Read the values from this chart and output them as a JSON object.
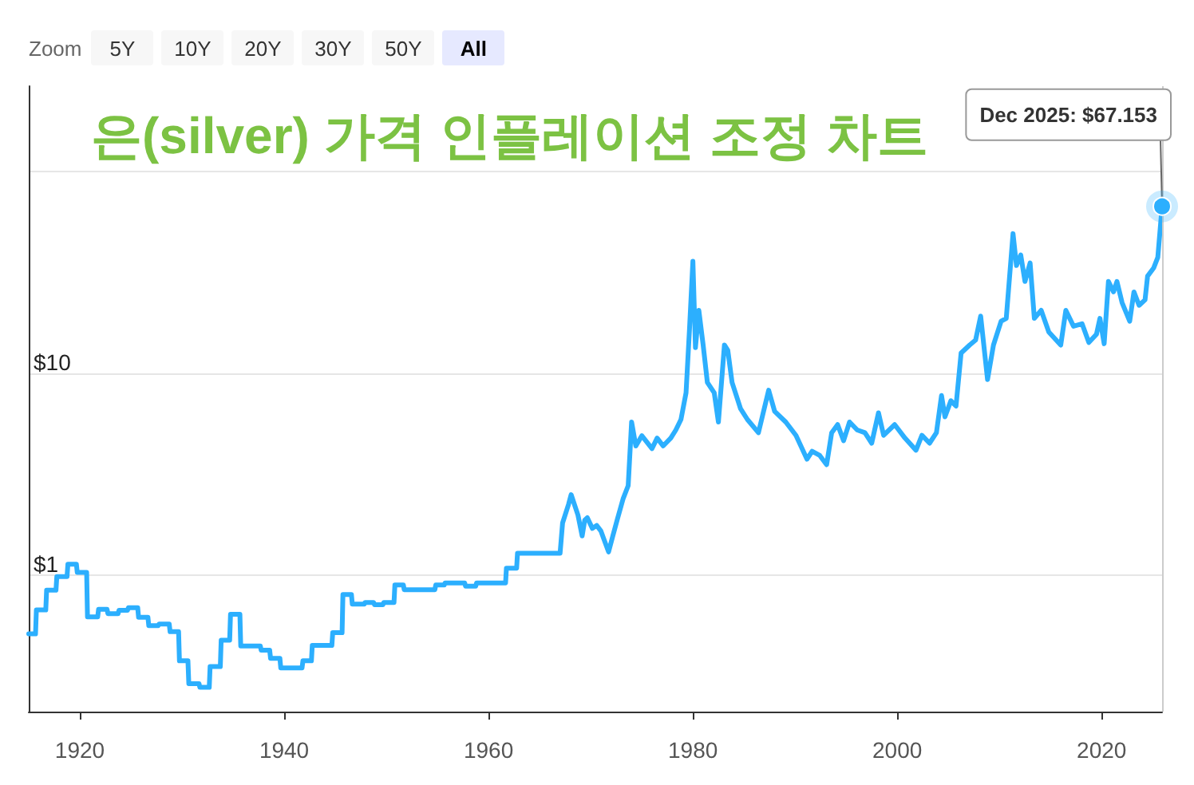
{
  "chart_data": {
    "type": "line",
    "title": "은(silver) 가격 인플레이션 조정 차트",
    "annotations": [
      "Zoom",
      "5Y",
      "10Y",
      "20Y",
      "30Y",
      "50Y",
      "All",
      {
        "text": "Dec 2025: $67.153",
        "x": "2025-12",
        "y": 67.153
      }
    ],
    "x": [
      "1915-01",
      "1915-09",
      "1915-10",
      "1916-09",
      "1916-10",
      "1917-09",
      "1917-10",
      "1918-10",
      "1918-11",
      "1919-09",
      "1919-10",
      "1920-09",
      "1920-10",
      "1921-10",
      "1921-11",
      "1922-09",
      "1922-10",
      "1923-10",
      "1923-11",
      "1924-09",
      "1924-10",
      "1925-09",
      "1925-10",
      "1926-09",
      "1926-10",
      "1927-09",
      "1927-10",
      "1928-10",
      "1928-11",
      "1929-09",
      "1929-10",
      "1930-08",
      "1930-09",
      "1931-09",
      "1931-10",
      "1932-09",
      "1932-10",
      "1933-10",
      "1933-11",
      "1934-09",
      "1934-10",
      "1935-09",
      "1935-10",
      "1937-09",
      "1937-10",
      "1938-08",
      "1938-09",
      "1939-08",
      "1939-09",
      "1941-10",
      "1941-11",
      "1942-09",
      "1942-10",
      "1944-09",
      "1944-10",
      "1945-09",
      "1945-10",
      "1946-08",
      "1946-09",
      "1947-11",
      "1947-12",
      "1948-10",
      "1948-11",
      "1949-09",
      "1949-10",
      "1950-10",
      "1950-11",
      "1951-09",
      "1951-10",
      "1954-10",
      "1954-11",
      "1955-09",
      "1955-10",
      "1957-09",
      "1957-10",
      "1958-10",
      "1958-11",
      "1961-09",
      "1961-10",
      "1962-10",
      "1962-11",
      "1967-01",
      "1967-04",
      "1967-11",
      "1968-02",
      "1968-10",
      "1969-03",
      "1969-06",
      "1969-09",
      "1970-03",
      "1970-08",
      "1971-01",
      "1971-10",
      "1972-03",
      "1972-08",
      "1973-03",
      "1973-09",
      "1974-01",
      "1974-06",
      "1975-01",
      "1976-01",
      "1976-07",
      "1977-02",
      "1977-11",
      "1978-05",
      "1978-11",
      "1979-05",
      "1979-09",
      "1980-01",
      "1980-04",
      "1980-08",
      "1981-01",
      "1981-06",
      "1982-02",
      "1982-07",
      "1983-02",
      "1983-06",
      "1983-11",
      "1984-09",
      "1985-05",
      "1986-06",
      "1987-06",
      "1988-01",
      "1989-02",
      "1990-02",
      "1991-03",
      "1991-09",
      "1992-06",
      "1993-02",
      "1993-08",
      "1994-03",
      "1994-10",
      "1995-05",
      "1996-02",
      "1996-11",
      "1997-07",
      "1998-03",
      "1998-09",
      "1999-10",
      "2000-10",
      "2001-11",
      "2002-06",
      "2003-03",
      "2003-11",
      "2004-05",
      "2004-09",
      "2005-04",
      "2005-10",
      "2006-04",
      "2007-02",
      "2007-09",
      "2008-03",
      "2008-11",
      "2009-06",
      "2010-03",
      "2010-09",
      "2011-05",
      "2011-09",
      "2012-02",
      "2012-07",
      "2013-01",
      "2013-06",
      "2014-02",
      "2014-11",
      "2016-01",
      "2016-07",
      "2017-04",
      "2018-02",
      "2018-10",
      "2019-07",
      "2019-11",
      "2020-04",
      "2020-09",
      "2021-03",
      "2021-07",
      "2022-01",
      "2022-10",
      "2023-03",
      "2023-09",
      "2024-04",
      "2024-07",
      "2025-02",
      "2025-07",
      "2025-12"
    ],
    "values": [
      0.51,
      0.51,
      0.67,
      0.67,
      0.84,
      0.84,
      0.98,
      0.98,
      1.13,
      1.13,
      1.03,
      1.03,
      0.62,
      0.62,
      0.675,
      0.675,
      0.643,
      0.643,
      0.667,
      0.667,
      0.687,
      0.687,
      0.616,
      0.616,
      0.56,
      0.56,
      0.57,
      0.57,
      0.523,
      0.523,
      0.375,
      0.375,
      0.289,
      0.289,
      0.277,
      0.277,
      0.351,
      0.351,
      0.475,
      0.475,
      0.638,
      0.638,
      0.444,
      0.444,
      0.423,
      0.423,
      0.386,
      0.386,
      0.346,
      0.346,
      0.375,
      0.375,
      0.447,
      0.447,
      0.517,
      0.517,
      0.8,
      0.8,
      0.716,
      0.716,
      0.73,
      0.73,
      0.712,
      0.712,
      0.73,
      0.73,
      0.891,
      0.891,
      0.844,
      0.844,
      0.891,
      0.891,
      0.913,
      0.913,
      0.88,
      0.88,
      0.913,
      0.913,
      1.08,
      1.08,
      1.28,
      1.28,
      1.81,
      2.24,
      2.5,
      1.98,
      1.56,
      1.87,
      1.92,
      1.7,
      1.76,
      1.65,
      1.3,
      1.56,
      1.87,
      2.38,
      2.77,
      5.73,
      4.36,
      4.9,
      4.23,
      4.77,
      4.36,
      4.77,
      5.23,
      5.9,
      8.0,
      16.5,
      35.9,
      13.4,
      20.5,
      13.8,
      9.0,
      8.0,
      5.73,
      13.8,
      13.0,
      9.0,
      6.66,
      5.9,
      5.07,
      8.24,
      6.47,
      5.73,
      4.92,
      3.75,
      4.1,
      3.91,
      3.52,
      5.07,
      5.56,
      4.63,
      5.73,
      5.23,
      5.07,
      4.5,
      6.36,
      4.92,
      5.56,
      4.77,
      4.15,
      4.92,
      4.5,
      5.07,
      7.75,
      6.08,
      7.3,
      6.87,
      12.6,
      13.8,
      14.6,
      19.2,
      9.3,
      13.8,
      18.1,
      18.7,
      49.2,
      34.2,
      38.6,
      28.5,
      35.2,
      18.7,
      20.5,
      16.0,
      13.8,
      20.5,
      17.1,
      17.6,
      14.2,
      15.6,
      18.7,
      14.0,
      28.5,
      25.3,
      28.5,
      22.4,
      18.1,
      25.3,
      21.7,
      23.1,
      30.3,
      33.2,
      37.5,
      67.153
    ],
    "color": "#2caffe",
    "xlim": [
      "1915-01",
      "2025-12"
    ],
    "xticks": [
      "1920",
      "1940",
      "1960",
      "1980",
      "2000",
      "2020"
    ],
    "ylim": [
      0.21,
      265
    ],
    "yticks": [
      {
        "value": 1,
        "label": "$1"
      },
      {
        "value": 10,
        "label": "$10"
      },
      {
        "value": 100,
        "label": null
      }
    ],
    "log": "y",
    "grid": "y",
    "marker": "none",
    "line_style": "solid",
    "ref_lines": [
      {
        "axis": "x",
        "value": "2025-12",
        "label": null,
        "color": "#cccccc"
      }
    ]
  }
}
